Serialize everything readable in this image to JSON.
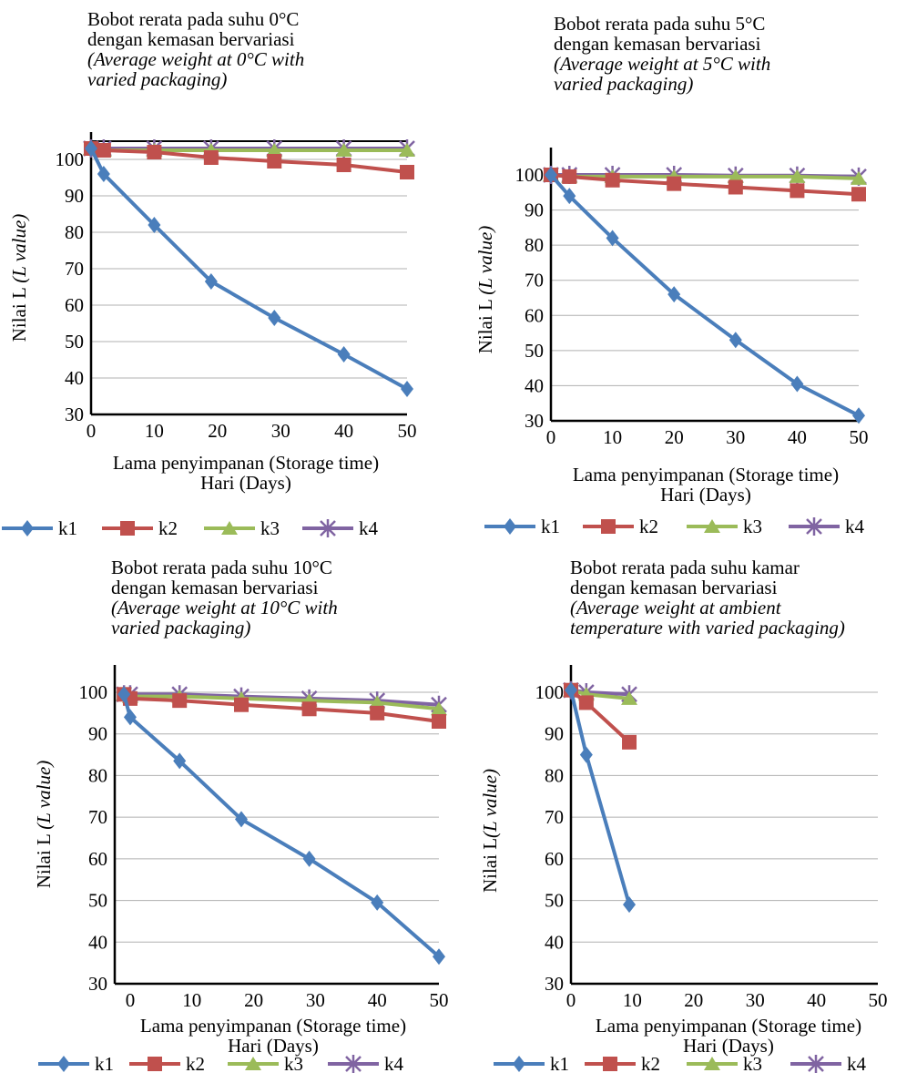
{
  "chart_data": [
    {
      "type": "line",
      "title": [
        "Bobot rerata pada suhu 0°C",
        "dengan kemasan bervariasi"
      ],
      "title_en": [
        "(Average  weight at 0°C with",
        "varied packaging)"
      ],
      "xlabel": "Lama penyimpanan (Storage time)",
      "xlabel_unit": "Hari (Days)",
      "ylabel": "Nilai L (L value)",
      "xlim": [
        0,
        50
      ],
      "ylim": [
        30,
        100
      ],
      "x_ticks": [
        "0",
        "10",
        "20",
        "30",
        "40",
        "50"
      ],
      "y_ticks": [
        "30",
        "40",
        "50",
        "60",
        "70",
        "80",
        "90",
        "100"
      ],
      "series": [
        {
          "name": "k1",
          "x": [
            0,
            2,
            10,
            19,
            29,
            40,
            50
          ],
          "values": [
            103,
            96,
            82,
            66.5,
            56.5,
            46.5,
            37
          ]
        },
        {
          "name": "k2",
          "x": [
            0,
            2,
            10,
            19,
            29,
            40,
            50
          ],
          "values": [
            103,
            102.5,
            102,
            100.5,
            99.5,
            98.5,
            96.5
          ]
        },
        {
          "name": "k3",
          "x": [
            0,
            2,
            10,
            19,
            29,
            40,
            50
          ],
          "values": [
            103,
            102.5,
            102.5,
            102.5,
            102.5,
            102.5,
            102.5
          ]
        },
        {
          "name": "k4",
          "x": [
            0,
            2,
            10,
            19,
            29,
            40,
            50
          ],
          "values": [
            103,
            103,
            103,
            103,
            103,
            103,
            103
          ]
        }
      ]
    },
    {
      "type": "line",
      "title": [
        "Bobot rerata pada suhu 5°C",
        "dengan kemasan bervariasi"
      ],
      "title_en": [
        "(Average weight at 5°C with",
        "varied packaging)"
      ],
      "xlabel": "Lama penyimpanan (Storage time)",
      "xlabel_unit": "Hari (Days)",
      "ylabel": "Nilai L (L value)",
      "xlim": [
        0,
        50
      ],
      "ylim": [
        30,
        100
      ],
      "x_ticks": [
        "0",
        "10",
        "20",
        "30",
        "40",
        "50"
      ],
      "y_ticks": [
        "30",
        "40",
        "50",
        "60",
        "70",
        "80",
        "90",
        "100"
      ],
      "series": [
        {
          "name": "k1",
          "x": [
            0,
            3,
            10,
            20,
            30,
            40,
            50
          ],
          "values": [
            100,
            94,
            82,
            66,
            53,
            40.5,
            31.5
          ]
        },
        {
          "name": "k2",
          "x": [
            0,
            3,
            10,
            20,
            30,
            40,
            50
          ],
          "values": [
            100,
            99.5,
            98.5,
            97.5,
            96.5,
            95.5,
            94.5
          ]
        },
        {
          "name": "k3",
          "x": [
            0,
            3,
            10,
            20,
            30,
            40,
            50
          ],
          "values": [
            100,
            99.5,
            99.5,
            99.5,
            99.5,
            99.5,
            99
          ]
        },
        {
          "name": "k4",
          "x": [
            0,
            3,
            10,
            20,
            30,
            40,
            50
          ],
          "values": [
            100,
            100,
            100,
            100,
            99.8,
            99.8,
            99.5
          ]
        }
      ]
    },
    {
      "type": "line",
      "title": [
        "Bobot rerata pada suhu 10°C",
        "dengan kemasan bervariasi"
      ],
      "title_en": [
        "(Average weight at 10°C with",
        "varied packaging)"
      ],
      "xlabel": "Lama penyimpanan (Storage time)",
      "xlabel_unit": "Hari (Days)",
      "ylabel": "Nilai L (L value)",
      "xlim": [
        -2.5,
        50
      ],
      "ylim": [
        30,
        100
      ],
      "x_ticks": [
        "0",
        "10",
        "20",
        "30",
        "40",
        "50"
      ],
      "y_ticks": [
        "30",
        "40",
        "50",
        "60",
        "70",
        "80",
        "90",
        "100"
      ],
      "series": [
        {
          "name": "k1",
          "x": [
            -1,
            0,
            8,
            18,
            29,
            40,
            50
          ],
          "values": [
            99.5,
            94,
            83.5,
            69.5,
            60,
            49.5,
            36.5
          ]
        },
        {
          "name": "k2",
          "x": [
            -1,
            0,
            8,
            18,
            29,
            40,
            50
          ],
          "values": [
            99.5,
            98.5,
            98,
            97,
            96,
            95,
            93
          ]
        },
        {
          "name": "k3",
          "x": [
            -1,
            0,
            8,
            18,
            29,
            40,
            50
          ],
          "values": [
            99.5,
            99,
            99,
            98.5,
            98,
            97.5,
            96
          ]
        },
        {
          "name": "k4",
          "x": [
            -1,
            0,
            8,
            18,
            29,
            40,
            50
          ],
          "values": [
            99.5,
            99.5,
            99.5,
            99,
            98.5,
            98,
            97
          ]
        }
      ]
    },
    {
      "type": "line",
      "title": [
        "Bobot rerata pada suhu kamar",
        "dengan kemasan bervariasi"
      ],
      "title_en": [
        "(Average weight at ambient",
        "temperature with varied packaging)"
      ],
      "xlabel": "Lama penyimpanan (Storage time)",
      "xlabel_unit": "Hari (Days)",
      "ylabel": "Nilai L(L value)",
      "xlim": [
        0,
        50
      ],
      "ylim": [
        30,
        100
      ],
      "x_ticks": [
        "0",
        "10",
        "20",
        "30",
        "40",
        "50"
      ],
      "y_ticks": [
        "30",
        "40",
        "50",
        "60",
        "70",
        "80",
        "90",
        "100"
      ],
      "series": [
        {
          "name": "k1",
          "x": [
            0,
            2.5,
            9.5
          ],
          "values": [
            100.5,
            85,
            49
          ]
        },
        {
          "name": "k2",
          "x": [
            0,
            2.5,
            9.5
          ],
          "values": [
            100.5,
            97.5,
            88
          ]
        },
        {
          "name": "k3",
          "x": [
            0,
            2.5,
            9.5
          ],
          "values": [
            100.5,
            99.5,
            98.5
          ]
        },
        {
          "name": "k4",
          "x": [
            0,
            2.5,
            9.5
          ],
          "values": [
            100.5,
            100,
            99.5
          ]
        }
      ]
    }
  ],
  "legend": [
    "k1",
    "k2",
    "k3",
    "k4"
  ],
  "colors": {
    "k1": "#4a7ebb",
    "k2": "#c0504d",
    "k3": "#9bbb59",
    "k4": "#8064a2",
    "grid": "#b0b0b0"
  }
}
